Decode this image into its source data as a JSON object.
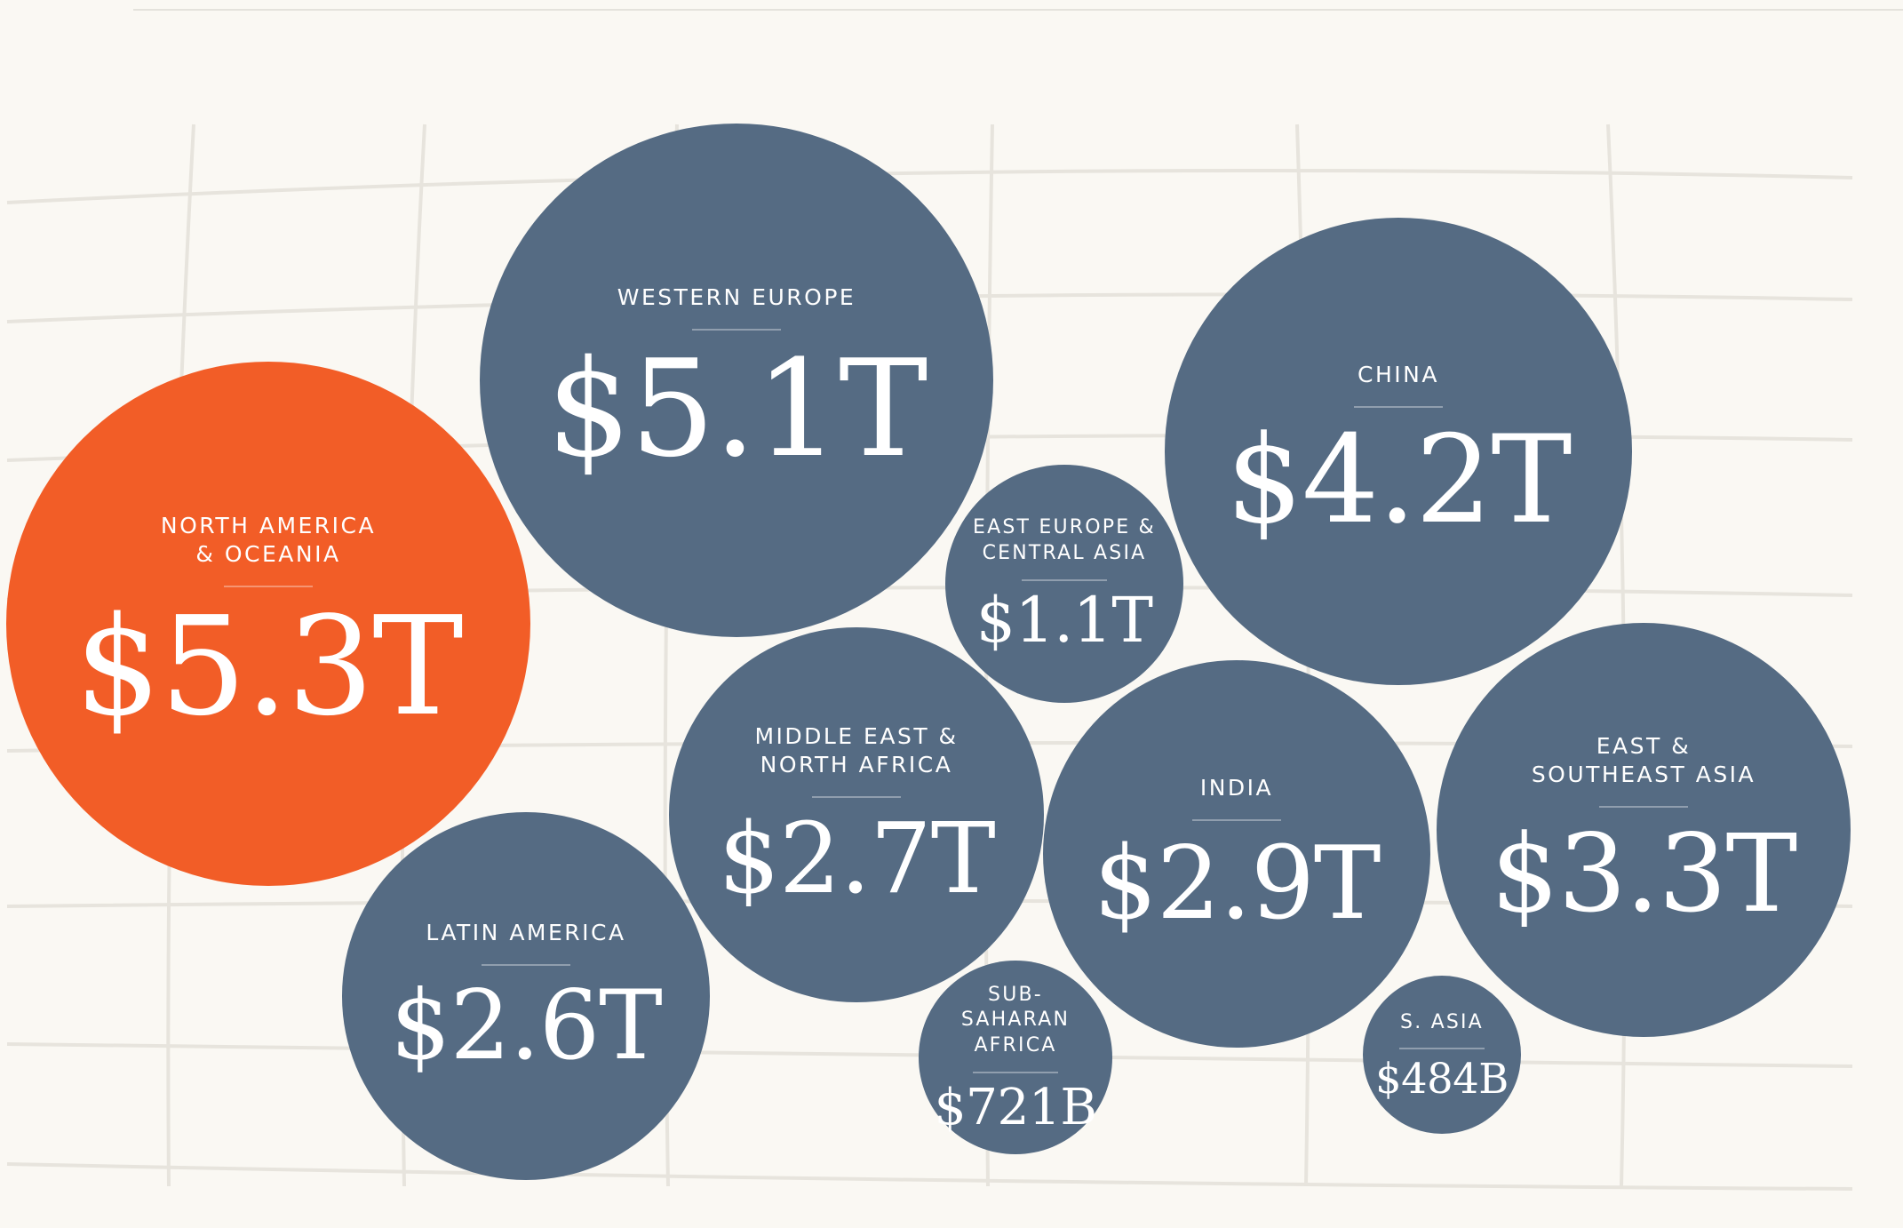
{
  "colors": {
    "background": "#faf8f3",
    "grid": "#e7e4dd",
    "default_bubble": "#556b83",
    "highlight_bubble": "#f25d27"
  },
  "chart_data": {
    "type": "bubble",
    "title": "",
    "unit": "USD",
    "regions": [
      {
        "id": "north-america-oceania",
        "label": "North America\n& Oceania",
        "value": 5.3,
        "display": "$5.3T",
        "highlight": true
      },
      {
        "id": "western-europe",
        "label": "Western Europe",
        "value": 5.1,
        "display": "$5.1T",
        "highlight": false
      },
      {
        "id": "china",
        "label": "China",
        "value": 4.2,
        "display": "$4.2T",
        "highlight": false
      },
      {
        "id": "east-europe-central-asia",
        "label": "East Europe &\nCentral Asia",
        "value": 1.1,
        "display": "$1.1T",
        "highlight": false
      },
      {
        "id": "middle-east-north-africa",
        "label": "Middle East &\nNorth Africa",
        "value": 2.7,
        "display": "$2.7T",
        "highlight": false
      },
      {
        "id": "india",
        "label": "India",
        "value": 2.9,
        "display": "$2.9T",
        "highlight": false
      },
      {
        "id": "east-southeast-asia",
        "label": "East &\nSoutheast Asia",
        "value": 3.3,
        "display": "$3.3T",
        "highlight": false
      },
      {
        "id": "latin-america",
        "label": "Latin America",
        "value": 2.6,
        "display": "$2.6T",
        "highlight": false
      },
      {
        "id": "sub-saharan-africa",
        "label": "Sub-\nSaharan\nAfrica",
        "value": 0.721,
        "display": "$721B",
        "highlight": false
      },
      {
        "id": "south-asia",
        "label": "S. Asia",
        "value": 0.484,
        "display": "$484B",
        "highlight": false
      }
    ]
  }
}
